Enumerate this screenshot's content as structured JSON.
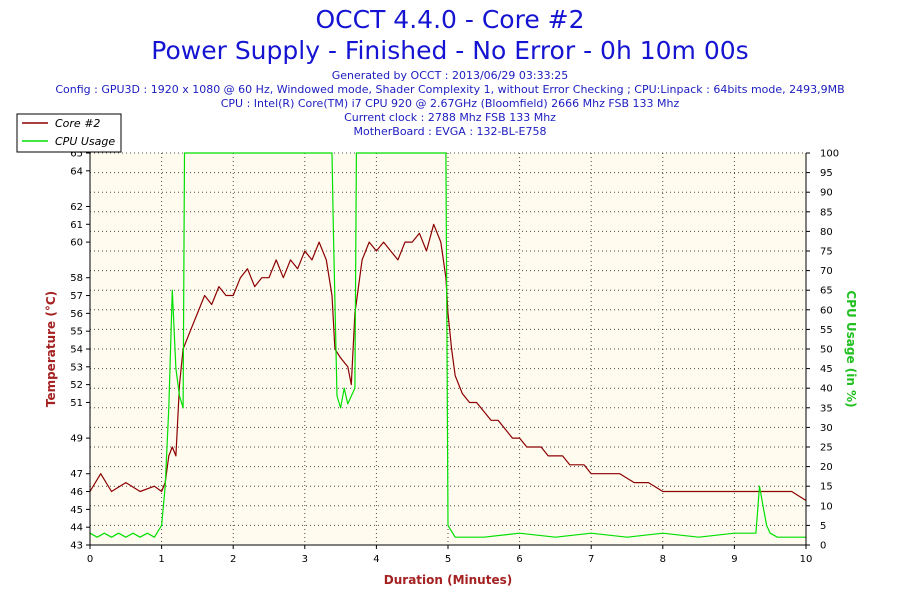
{
  "header": {
    "title": "OCCT 4.4.0 - Core #2",
    "subtitle": "Power Supply - Finished - No Error - 0h 10m 00s",
    "info_lines": [
      "Generated by OCCT : 2013/06/29 03:33:25",
      "Config : GPU3D : 1920 x 1080 @ 60 Hz, Windowed mode, Shader Complexity 1, without Error Checking ; CPU:Linpack : 64bits mode, 2493,9MB",
      "CPU : Intel(R) Core(TM) i7 CPU 920 @ 2.67GHz (Bloomfield) 2666 Mhz FSB 133 Mhz",
      "Current clock : 2788 Mhz FSB 133 Mhz",
      "MotherBoard : EVGA : 132-BL-E758"
    ]
  },
  "colors": {
    "temperature": "#8b0000",
    "cpu_usage": "#00e000",
    "title": "#1414d2",
    "axis_label_left": "#a52020",
    "axis_label_right": "#20c020",
    "plot_bg": "#fffbef",
    "grid": "#000000"
  },
  "chart_data": {
    "type": "line",
    "xlabel": "Duration (Minutes)",
    "ylabel": "Temperature (°C)",
    "y2label": "CPU Usage (in %)",
    "xlim": [
      0,
      10
    ],
    "ylim": [
      43,
      65
    ],
    "y2lim": [
      0,
      100
    ],
    "x_ticks": [
      0,
      1,
      2,
      3,
      4,
      5,
      6,
      7,
      8,
      9,
      10
    ],
    "y_ticks": [
      43,
      44,
      45,
      46,
      47,
      49,
      51,
      52,
      53,
      54,
      55,
      56,
      57,
      58,
      60,
      61,
      62,
      64,
      65
    ],
    "y2_ticks": [
      0,
      5,
      10,
      15,
      20,
      25,
      30,
      35,
      40,
      45,
      50,
      55,
      60,
      65,
      70,
      75,
      80,
      85,
      90,
      95,
      100
    ],
    "grid": true,
    "legend_position": "top-left",
    "series": [
      {
        "name": "Core #2",
        "axis": "left",
        "x": [
          0,
          0.15,
          0.3,
          0.5,
          0.7,
          0.9,
          1.0,
          1.05,
          1.1,
          1.15,
          1.2,
          1.25,
          1.3,
          1.4,
          1.5,
          1.6,
          1.7,
          1.8,
          1.9,
          2.0,
          2.1,
          2.2,
          2.3,
          2.4,
          2.5,
          2.6,
          2.7,
          2.8,
          2.9,
          3.0,
          3.1,
          3.2,
          3.3,
          3.38,
          3.42,
          3.5,
          3.6,
          3.65,
          3.7,
          3.8,
          3.9,
          4.0,
          4.1,
          4.2,
          4.3,
          4.4,
          4.5,
          4.6,
          4.7,
          4.8,
          4.9,
          4.97,
          5.0,
          5.05,
          5.1,
          5.2,
          5.3,
          5.4,
          5.5,
          5.6,
          5.7,
          5.8,
          5.9,
          6.0,
          6.1,
          6.2,
          6.3,
          6.4,
          6.5,
          6.6,
          6.7,
          6.8,
          6.9,
          7.0,
          7.2,
          7.4,
          7.6,
          7.8,
          8.0,
          8.2,
          8.4,
          8.6,
          8.8,
          9.0,
          9.2,
          9.4,
          9.6,
          9.8,
          10.0
        ],
        "values": [
          46,
          47,
          46,
          46.5,
          46,
          46.3,
          46,
          46.5,
          48,
          48.5,
          48,
          52,
          54,
          55,
          56,
          57,
          56.5,
          57.5,
          57,
          57,
          58,
          58.5,
          57.5,
          58,
          58,
          59,
          58,
          59,
          58.5,
          59.5,
          59,
          60,
          59,
          57,
          54,
          53.5,
          53,
          52,
          56,
          59,
          60,
          59.5,
          60,
          59.5,
          59,
          60,
          60,
          60.5,
          59.5,
          61,
          60,
          58,
          56,
          54,
          52.5,
          51.5,
          51,
          51,
          50.5,
          50,
          50,
          49.5,
          49,
          49,
          48.5,
          48.5,
          48.5,
          48,
          48,
          48,
          47.5,
          47.5,
          47.5,
          47,
          47,
          47,
          46.5,
          46.5,
          46,
          46,
          46,
          46,
          46,
          46,
          46,
          46,
          46,
          46,
          45.5
        ]
      },
      {
        "name": "CPU Usage",
        "axis": "right",
        "x": [
          0,
          0.1,
          0.2,
          0.3,
          0.4,
          0.5,
          0.6,
          0.7,
          0.8,
          0.9,
          1.0,
          1.05,
          1.1,
          1.15,
          1.2,
          1.25,
          1.3,
          1.32,
          1.5,
          2.0,
          2.5,
          3.0,
          3.38,
          3.4,
          3.45,
          3.5,
          3.55,
          3.6,
          3.65,
          3.7,
          3.72,
          4.0,
          4.5,
          4.97,
          5.0,
          5.1,
          5.5,
          6.0,
          6.5,
          7.0,
          7.5,
          8.0,
          8.5,
          9.0,
          9.3,
          9.35,
          9.4,
          9.45,
          9.5,
          9.6,
          10.0
        ],
        "values": [
          3,
          2,
          3,
          2,
          3,
          2,
          3,
          2,
          3,
          2,
          5,
          15,
          35,
          65,
          45,
          38,
          35,
          100,
          100,
          100,
          100,
          100,
          100,
          80,
          38,
          35,
          40,
          36,
          38,
          40,
          100,
          100,
          100,
          100,
          5,
          2,
          2,
          3,
          2,
          3,
          2,
          3,
          2,
          3,
          3,
          15,
          10,
          5,
          3,
          2,
          2
        ]
      }
    ]
  }
}
